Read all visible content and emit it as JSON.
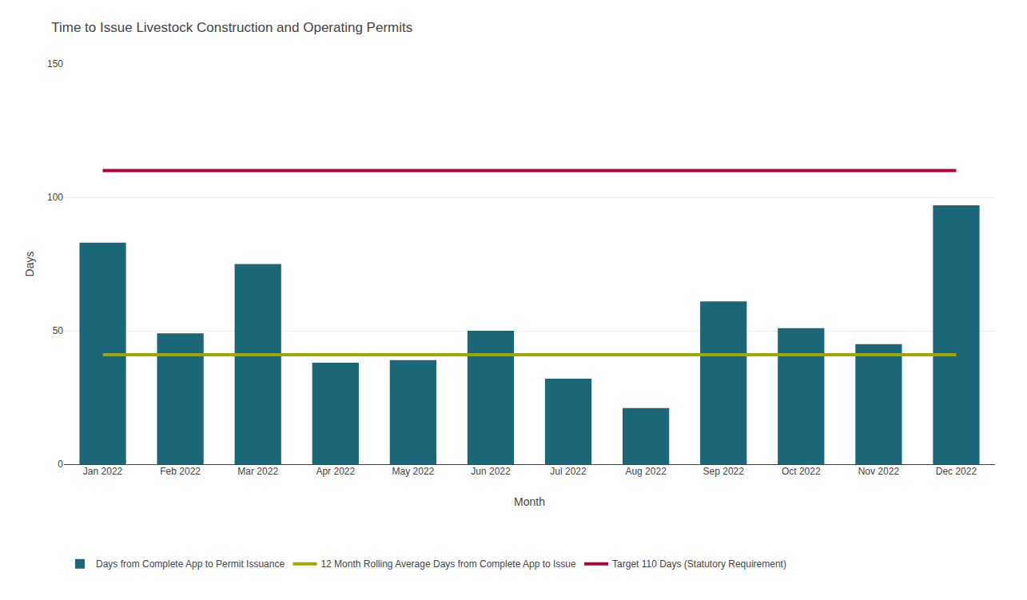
{
  "chart_data": {
    "type": "bar",
    "title": "Time to Issue Livestock Construction and Operating Permits",
    "xlabel": "Month",
    "ylabel": "Days",
    "categories": [
      "Jan 2022",
      "Feb 2022",
      "Mar 2022",
      "Apr 2022",
      "May 2022",
      "Jun 2022",
      "Jul 2022",
      "Aug 2022",
      "Sep 2022",
      "Oct 2022",
      "Nov 2022",
      "Dec 2022"
    ],
    "series": [
      {
        "name": "Days from Complete App to Permit Issuance",
        "type": "bar",
        "color": "#1b6678",
        "values": [
          83,
          49,
          75,
          38,
          39,
          50,
          32,
          21,
          61,
          51,
          45,
          97
        ]
      },
      {
        "name": "12 Month Rolling Average Days from Complete App to Issue",
        "type": "line",
        "color": "#a0a800",
        "values": [
          41,
          41,
          41,
          41,
          41,
          41,
          41,
          41,
          41,
          41,
          41,
          41
        ]
      },
      {
        "name": "Target 110 Days (Statutory Requirement)",
        "type": "line",
        "color": "#b0003a",
        "values": [
          110,
          110,
          110,
          110,
          110,
          110,
          110,
          110,
          110,
          110,
          110,
          110
        ]
      }
    ],
    "ylim": [
      0,
      150
    ],
    "yticks": [
      0,
      50,
      100,
      150
    ],
    "grid": true,
    "legend": "bottom"
  }
}
